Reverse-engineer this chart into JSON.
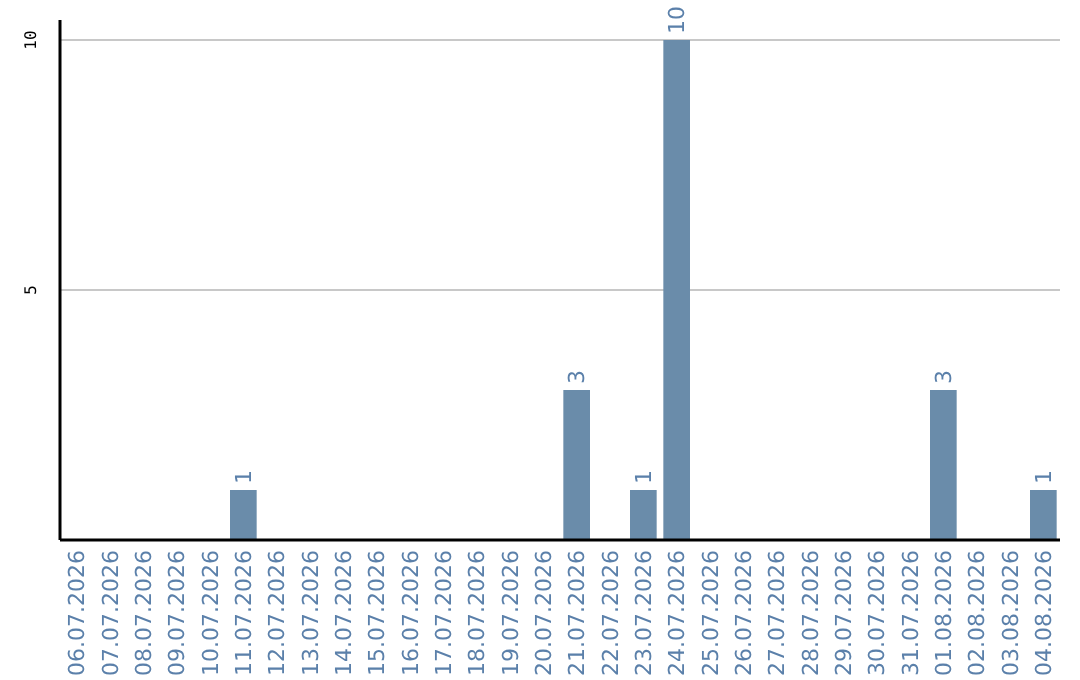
{
  "chart_data": {
    "type": "bar",
    "categories": [
      "06.07.2026",
      "07.07.2026",
      "08.07.2026",
      "09.07.2026",
      "10.07.2026",
      "11.07.2026",
      "12.07.2026",
      "13.07.2026",
      "14.07.2026",
      "15.07.2026",
      "16.07.2026",
      "17.07.2026",
      "18.07.2026",
      "19.07.2026",
      "20.07.2026",
      "21.07.2026",
      "22.07.2026",
      "23.07.2026",
      "24.07.2026",
      "25.07.2026",
      "26.07.2026",
      "27.07.2026",
      "28.07.2026",
      "29.07.2026",
      "30.07.2026",
      "31.07.2026",
      "01.08.2026",
      "02.08.2026",
      "03.08.2026",
      "04.08.2026"
    ],
    "values": [
      0,
      0,
      0,
      0,
      0,
      1,
      0,
      0,
      0,
      0,
      0,
      0,
      0,
      0,
      0,
      3,
      0,
      1,
      10,
      0,
      0,
      0,
      0,
      0,
      0,
      0,
      3,
      0,
      0,
      1
    ],
    "value_labels": [
      null,
      null,
      null,
      null,
      null,
      "1",
      null,
      null,
      null,
      null,
      null,
      null,
      null,
      null,
      null,
      "3",
      null,
      "1",
      "10",
      null,
      null,
      null,
      null,
      null,
      null,
      null,
      "3",
      null,
      null,
      "1"
    ],
    "color": "#6a8caa",
    "ylim": [
      0,
      10.4
    ],
    "yticks": [
      5,
      10
    ],
    "grid": "y"
  }
}
